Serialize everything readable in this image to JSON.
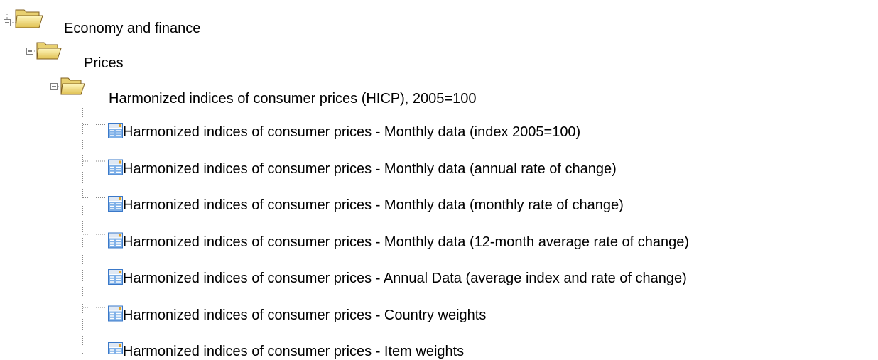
{
  "tree": {
    "label": "Economy and finance",
    "children": [
      {
        "label": "Prices",
        "children": [
          {
            "label": "Harmonized indices of consumer prices (HICP), 2005=100",
            "children": [
              {
                "label": "Harmonized indices of consumer prices - Monthly data (index 2005=100)"
              },
              {
                "label": "Harmonized indices of consumer prices - Monthly data (annual rate of change)"
              },
              {
                "label": "Harmonized indices of consumer prices - Monthly data (monthly rate of change)"
              },
              {
                "label": "Harmonized indices of consumer prices - Monthly data (12-month average rate of change)"
              },
              {
                "label": "Harmonized indices of consumer prices - Annual Data (average index and rate of change)"
              },
              {
                "label": "Harmonized indices of consumer prices - Country weights"
              },
              {
                "label": "Harmonized indices of consumer prices - Item weights"
              }
            ]
          }
        ]
      }
    ]
  }
}
